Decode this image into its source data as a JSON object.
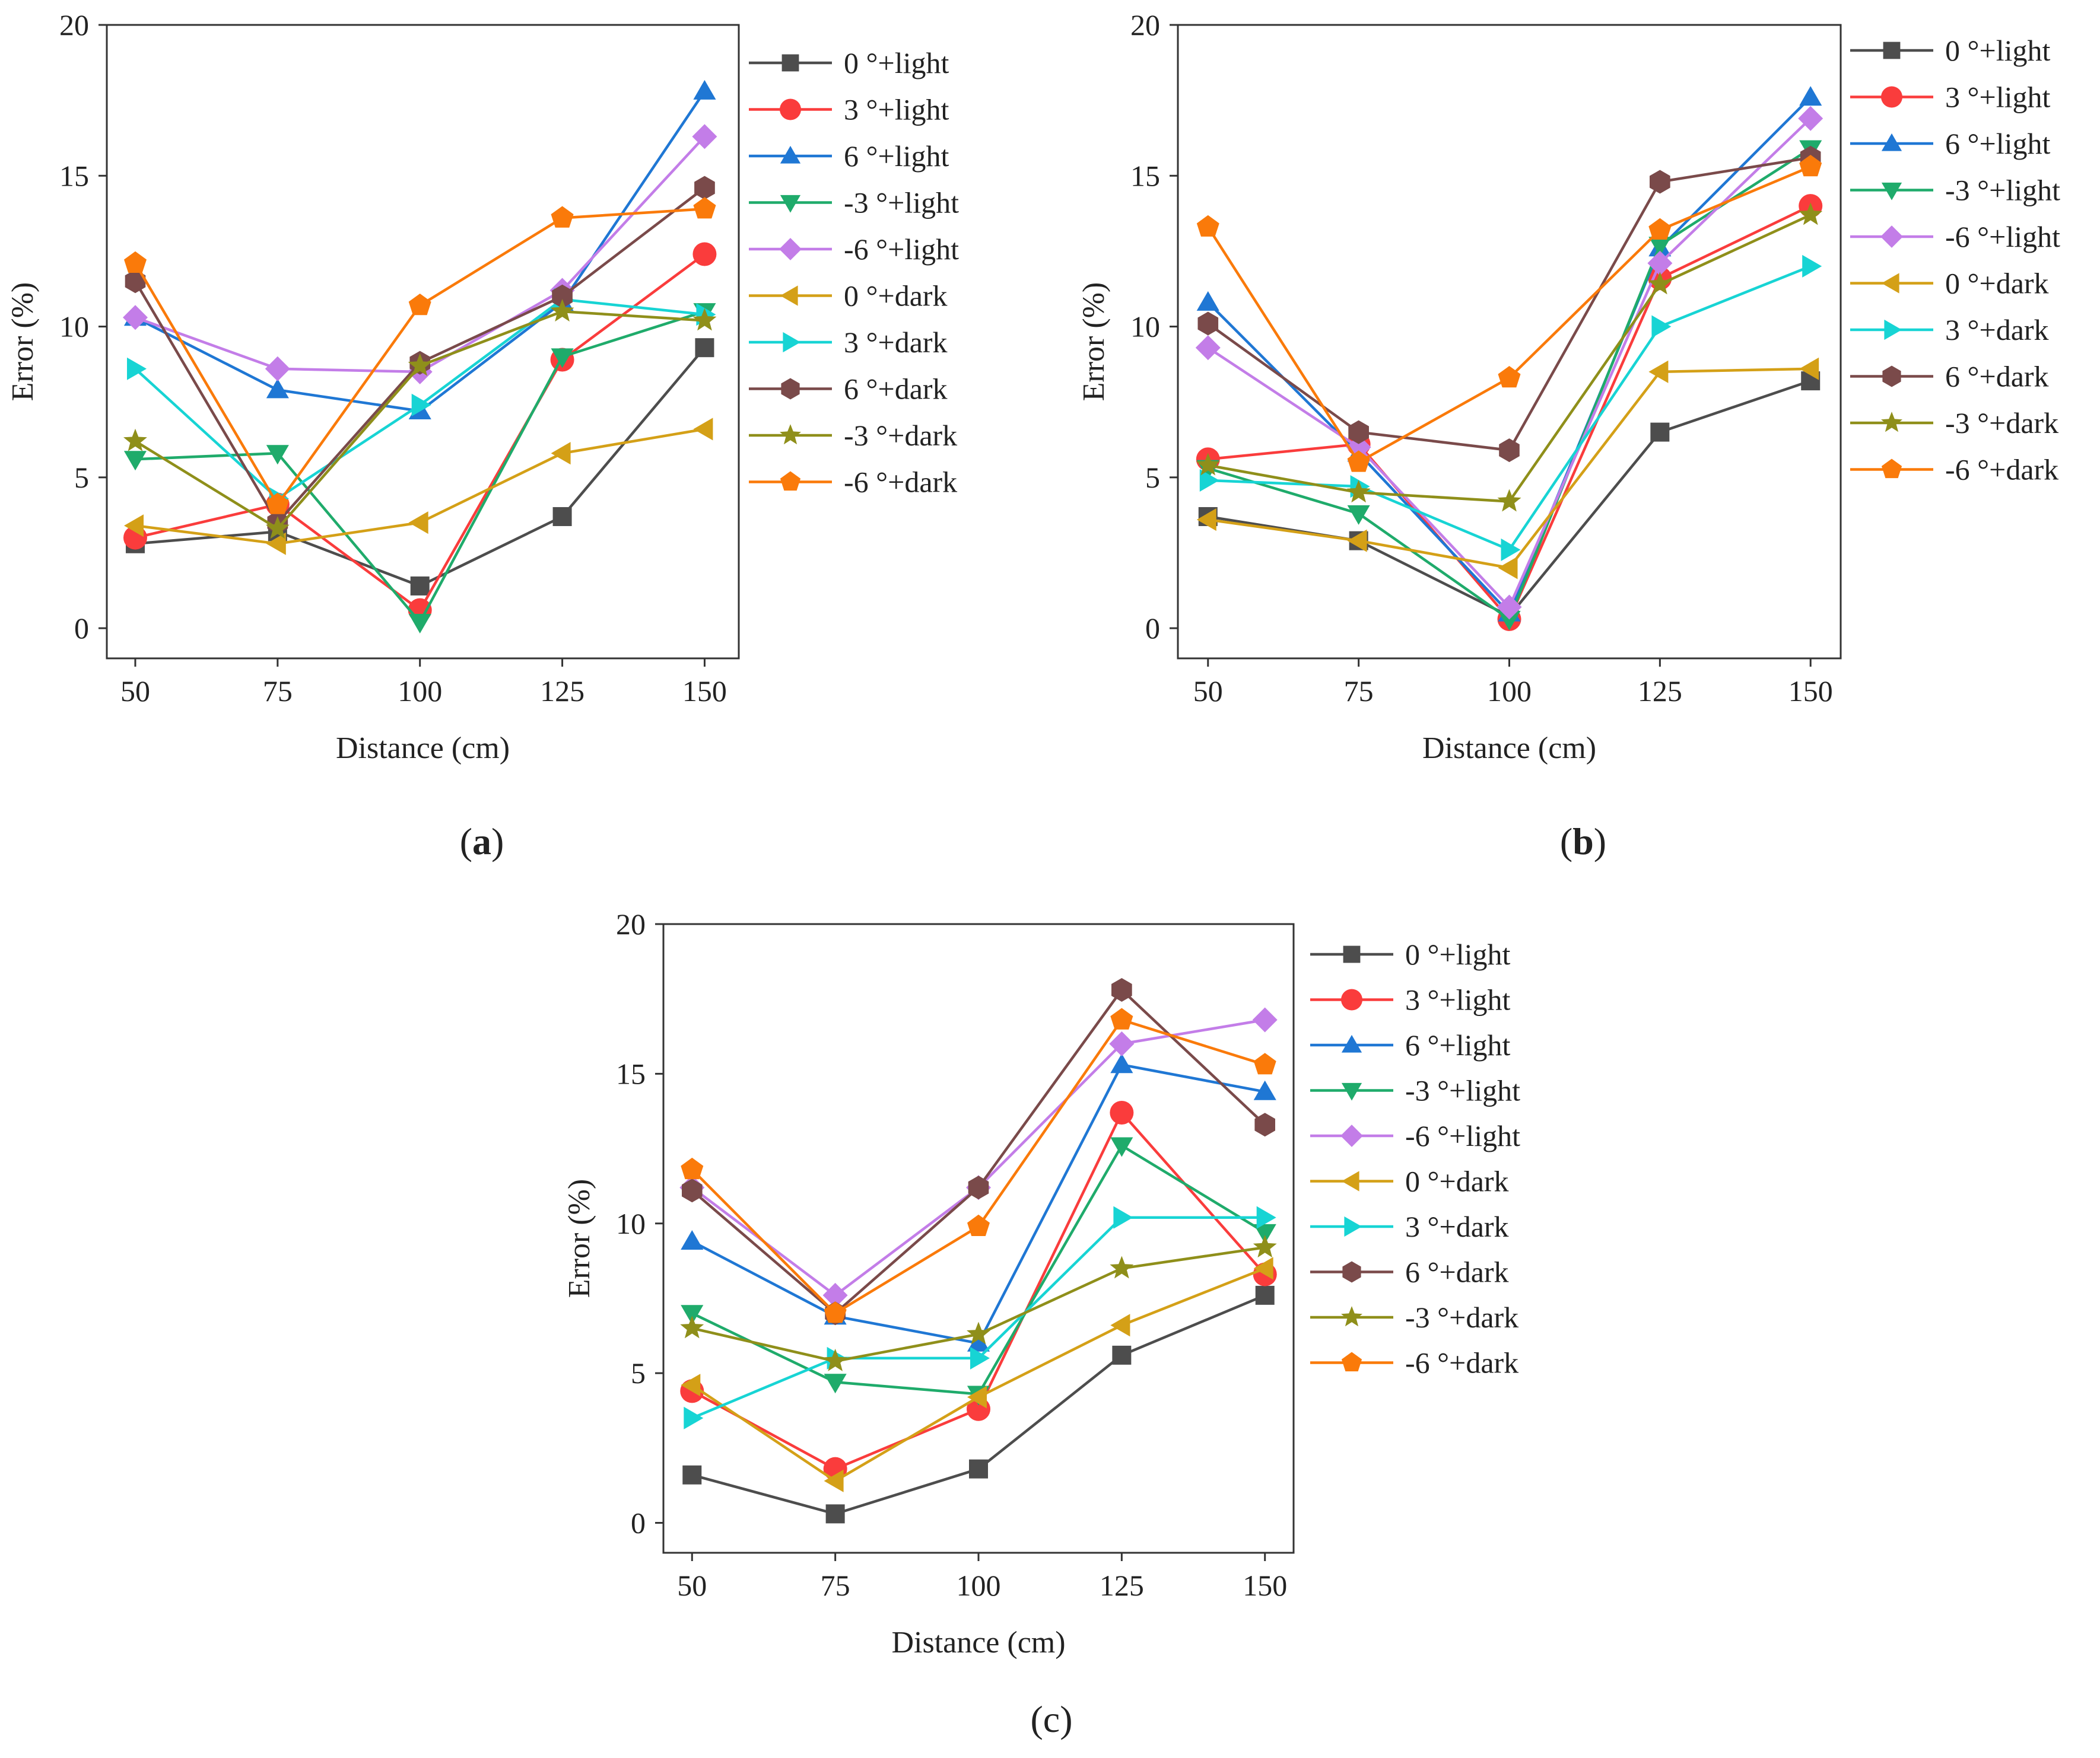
{
  "figure": {
    "panels": [
      {
        "id": "a",
        "caption_open": "(",
        "caption_letter": "a",
        "caption_close": ")"
      },
      {
        "id": "b",
        "caption_open": "(",
        "caption_letter": "b",
        "caption_close": ")"
      },
      {
        "id": "c",
        "caption_open": "(",
        "caption_letter": "c",
        "caption_close": ")"
      }
    ]
  },
  "chart_data": [
    {
      "type": "line",
      "title": "",
      "panel": "a",
      "xlabel": "Distance (cm)",
      "ylabel": "Error (%)",
      "x": [
        50,
        75,
        100,
        125,
        150
      ],
      "x_ticks": [
        "50",
        "75",
        "100",
        "125",
        "150"
      ],
      "y_ticks": [
        "0",
        "5",
        "10",
        "15",
        "20"
      ],
      "xlim": [
        45,
        156
      ],
      "ylim": [
        -1,
        20
      ],
      "legend_position": "right",
      "series": [
        {
          "name": "0 °+light",
          "color": "#4d4d4d",
          "marker": "square",
          "values": [
            2.8,
            3.2,
            1.4,
            3.7,
            9.3
          ]
        },
        {
          "name": "3 °+light",
          "color": "#fa3c3c",
          "marker": "circle",
          "values": [
            3.0,
            4.1,
            0.6,
            8.9,
            12.4
          ]
        },
        {
          "name": "6 °+light",
          "color": "#1f77d4",
          "marker": "triangle-up",
          "values": [
            10.3,
            7.9,
            7.2,
            10.8,
            17.8
          ]
        },
        {
          "name": "-3 °+light",
          "color": "#1fab6b",
          "marker": "triangle-down",
          "values": [
            5.6,
            5.8,
            0.2,
            9.0,
            10.5
          ]
        },
        {
          "name": "-6 °+light",
          "color": "#c37de8",
          "marker": "diamond",
          "values": [
            10.3,
            8.6,
            8.5,
            11.2,
            16.3
          ]
        },
        {
          "name": "0 °+dark",
          "color": "#d4a017",
          "marker": "triangle-left",
          "values": [
            3.4,
            2.8,
            3.5,
            5.8,
            6.6
          ]
        },
        {
          "name": "3 °+dark",
          "color": "#17d4d4",
          "marker": "triangle-right",
          "values": [
            8.6,
            4.3,
            7.4,
            10.9,
            10.4
          ]
        },
        {
          "name": "6 °+dark",
          "color": "#7a4a4a",
          "marker": "hexagon",
          "values": [
            11.5,
            3.5,
            8.8,
            11.0,
            14.6
          ]
        },
        {
          "name": "-3 °+dark",
          "color": "#8f8f1a",
          "marker": "star",
          "values": [
            6.2,
            3.3,
            8.7,
            10.5,
            10.2
          ]
        },
        {
          "name": "-6 °+dark",
          "color": "#fa7a0a",
          "marker": "pentagon",
          "values": [
            12.1,
            4.1,
            10.7,
            13.6,
            13.9
          ]
        }
      ]
    },
    {
      "type": "line",
      "title": "",
      "panel": "b",
      "xlabel": "Distance (cm)",
      "ylabel": "Error (%)",
      "x": [
        50,
        75,
        100,
        125,
        150
      ],
      "x_ticks": [
        "50",
        "75",
        "100",
        "125",
        "150"
      ],
      "y_ticks": [
        "0",
        "5",
        "10",
        "15",
        "20"
      ],
      "xlim": [
        45,
        155
      ],
      "ylim": [
        -1,
        20
      ],
      "legend_position": "right",
      "series": [
        {
          "name": "0 °+light",
          "color": "#4d4d4d",
          "marker": "square",
          "values": [
            3.7,
            2.9,
            0.4,
            6.5,
            8.2
          ]
        },
        {
          "name": "3 °+light",
          "color": "#fa3c3c",
          "marker": "circle",
          "values": [
            5.6,
            6.1,
            0.3,
            11.6,
            14.0
          ]
        },
        {
          "name": "6 °+light",
          "color": "#1f77d4",
          "marker": "triangle-up",
          "values": [
            10.8,
            5.8,
            0.5,
            12.6,
            17.6
          ]
        },
        {
          "name": "-3 °+light",
          "color": "#1fab6b",
          "marker": "triangle-down",
          "values": [
            5.3,
            3.8,
            0.3,
            12.7,
            15.9
          ]
        },
        {
          "name": "-6 °+light",
          "color": "#c37de8",
          "marker": "diamond",
          "values": [
            9.3,
            6.0,
            0.7,
            12.1,
            16.9
          ]
        },
        {
          "name": "0 °+dark",
          "color": "#d4a017",
          "marker": "triangle-left",
          "values": [
            3.6,
            2.9,
            2.0,
            8.5,
            8.6
          ]
        },
        {
          "name": "3 °+dark",
          "color": "#17d4d4",
          "marker": "triangle-right",
          "values": [
            4.9,
            4.7,
            2.6,
            10.0,
            12.0
          ]
        },
        {
          "name": "6 °+dark",
          "color": "#7a4a4a",
          "marker": "hexagon",
          "values": [
            10.1,
            6.5,
            5.9,
            14.8,
            15.6
          ]
        },
        {
          "name": "-3 °+dark",
          "color": "#8f8f1a",
          "marker": "star",
          "values": [
            5.4,
            4.5,
            4.2,
            11.4,
            13.7
          ]
        },
        {
          "name": "-6 °+dark",
          "color": "#fa7a0a",
          "marker": "pentagon",
          "values": [
            13.3,
            5.5,
            8.3,
            13.2,
            15.3
          ]
        }
      ]
    },
    {
      "type": "line",
      "title": "",
      "panel": "c",
      "xlabel": "Distance (cm)",
      "ylabel": "Error (%)",
      "x": [
        50,
        75,
        100,
        125,
        150
      ],
      "x_ticks": [
        "50",
        "75",
        "100",
        "125",
        "150"
      ],
      "y_ticks": [
        "0",
        "5",
        "10",
        "15",
        "20"
      ],
      "xlim": [
        45,
        155
      ],
      "ylim": [
        -1,
        20
      ],
      "legend_position": "right",
      "series": [
        {
          "name": "0 °+light",
          "color": "#4d4d4d",
          "marker": "square",
          "values": [
            1.6,
            0.3,
            1.8,
            5.6,
            7.6
          ]
        },
        {
          "name": "3 °+light",
          "color": "#fa3c3c",
          "marker": "circle",
          "values": [
            4.4,
            1.8,
            3.8,
            13.7,
            8.3
          ]
        },
        {
          "name": "6 °+light",
          "color": "#1f77d4",
          "marker": "triangle-up",
          "values": [
            9.4,
            6.9,
            6.0,
            15.3,
            14.4
          ]
        },
        {
          "name": "-3 °+light",
          "color": "#1fab6b",
          "marker": "triangle-down",
          "values": [
            7.0,
            4.7,
            4.3,
            12.6,
            9.7
          ]
        },
        {
          "name": "-6 °+light",
          "color": "#c37de8",
          "marker": "diamond",
          "values": [
            11.2,
            7.6,
            11.2,
            16.0,
            16.8
          ]
        },
        {
          "name": "0 °+dark",
          "color": "#d4a017",
          "marker": "triangle-left",
          "values": [
            4.6,
            1.4,
            4.2,
            6.6,
            8.5
          ]
        },
        {
          "name": "3 °+dark",
          "color": "#17d4d4",
          "marker": "triangle-right",
          "values": [
            3.5,
            5.5,
            5.5,
            10.2,
            10.2
          ]
        },
        {
          "name": "6 °+dark",
          "color": "#7a4a4a",
          "marker": "hexagon",
          "values": [
            11.1,
            7.0,
            11.2,
            17.8,
            13.3
          ]
        },
        {
          "name": "-3 °+dark",
          "color": "#8f8f1a",
          "marker": "star",
          "values": [
            6.5,
            5.4,
            6.3,
            8.5,
            9.2
          ]
        },
        {
          "name": "-6 °+dark",
          "color": "#fa7a0a",
          "marker": "pentagon",
          "values": [
            11.8,
            7.0,
            9.9,
            16.8,
            15.3
          ]
        }
      ]
    }
  ]
}
